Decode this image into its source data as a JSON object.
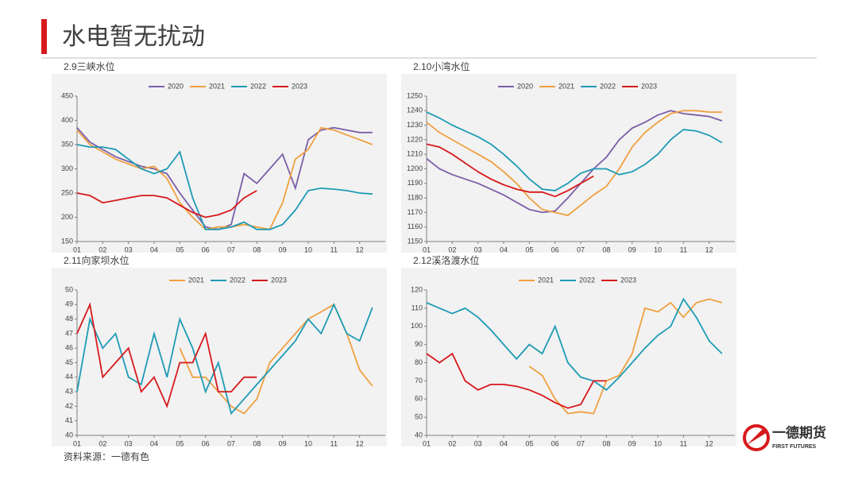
{
  "slide_title": "水电暂无扰动",
  "source": "资料来源：一德有色",
  "logo": {
    "name": "一德期货",
    "subtitle": "FIRST FUTURES"
  },
  "chart_data": [
    {
      "type": "line",
      "title": "2.9三峡水位",
      "x": [
        1,
        1.5,
        2,
        2.5,
        3,
        3.5,
        4,
        4.5,
        5,
        5.5,
        6,
        6.5,
        7,
        7.5,
        8,
        8.5,
        9,
        9.5,
        10,
        10.5,
        11,
        11.5,
        12,
        12.5
      ],
      "xlim": [
        1,
        13
      ],
      "xticks": [
        {
          "value": 1,
          "label": "01"
        },
        {
          "value": 2,
          "label": "02"
        },
        {
          "value": 3,
          "label": "03"
        },
        {
          "value": 4,
          "label": "04"
        },
        {
          "value": 5,
          "label": "05"
        },
        {
          "value": 6,
          "label": "06"
        },
        {
          "value": 7,
          "label": "07"
        },
        {
          "value": 8,
          "label": "08"
        },
        {
          "value": 9,
          "label": "09"
        },
        {
          "value": 10,
          "label": "10"
        },
        {
          "value": 11,
          "label": "11"
        },
        {
          "value": 12,
          "label": "12"
        }
      ],
      "ylim": [
        150,
        450
      ],
      "yticks": [
        150,
        200,
        250,
        300,
        350,
        400,
        450
      ],
      "series": [
        {
          "name": "2020",
          "color": "#7b5ea7",
          "values": [
            385,
            355,
            340,
            325,
            315,
            305,
            300,
            290,
            250,
            215,
            180,
            175,
            185,
            290,
            270,
            300,
            330,
            260,
            360,
            380,
            385,
            380,
            375,
            375
          ]
        },
        {
          "name": "2021",
          "color": "#f0a040",
          "values": [
            380,
            350,
            335,
            320,
            310,
            300,
            305,
            280,
            230,
            200,
            175,
            180,
            180,
            185,
            180,
            175,
            230,
            320,
            340,
            385,
            380,
            370,
            360,
            350
          ]
        },
        {
          "name": "2022",
          "color": "#1e9bb5",
          "values": [
            350,
            345,
            345,
            340,
            320,
            300,
            290,
            300,
            335,
            240,
            175,
            175,
            180,
            190,
            175,
            175,
            185,
            215,
            255,
            260,
            258,
            255,
            250,
            248
          ]
        },
        {
          "name": "2023",
          "color": "#d7191c",
          "values": [
            250,
            245,
            230,
            235,
            240,
            245,
            245,
            240,
            225,
            210,
            200,
            205,
            215,
            240,
            255,
            null,
            null,
            null,
            null,
            null,
            null,
            null,
            null,
            null
          ]
        }
      ]
    },
    {
      "type": "line",
      "title": "2.10小湾水位",
      "x": [
        1,
        1.5,
        2,
        2.5,
        3,
        3.5,
        4,
        4.5,
        5,
        5.5,
        6,
        6.5,
        7,
        7.5,
        8,
        8.5,
        9,
        9.5,
        10,
        10.5,
        11,
        11.5,
        12,
        12.5
      ],
      "xlim": [
        1,
        13
      ],
      "xticks": [
        {
          "value": 1,
          "label": "01"
        },
        {
          "value": 2,
          "label": "02"
        },
        {
          "value": 3,
          "label": "03"
        },
        {
          "value": 4,
          "label": "04"
        },
        {
          "value": 5,
          "label": "05"
        },
        {
          "value": 6,
          "label": "06"
        },
        {
          "value": 7,
          "label": "07"
        },
        {
          "value": 8,
          "label": "08"
        },
        {
          "value": 9,
          "label": "09"
        },
        {
          "value": 10,
          "label": "10"
        },
        {
          "value": 11,
          "label": "11"
        },
        {
          "value": 12,
          "label": "12"
        }
      ],
      "ylim": [
        1150,
        1250
      ],
      "yticks": [
        1150,
        1160,
        1170,
        1180,
        1190,
        1200,
        1210,
        1220,
        1230,
        1240,
        1250
      ],
      "series": [
        {
          "name": "2020",
          "color": "#7b5ea7",
          "values": [
            1207,
            1200,
            1196,
            1193,
            1190,
            1186,
            1182,
            1177,
            1172,
            1170,
            1171,
            1180,
            1190,
            1200,
            1208,
            1220,
            1228,
            1232,
            1237,
            1240,
            1238,
            1237,
            1236,
            1233
          ]
        },
        {
          "name": "2021",
          "color": "#f0a040",
          "values": [
            1232,
            1225,
            1220,
            1215,
            1210,
            1205,
            1198,
            1190,
            1180,
            1172,
            1170,
            1168,
            1175,
            1182,
            1188,
            1200,
            1215,
            1225,
            1232,
            1238,
            1240,
            1240,
            1239,
            1239
          ]
        },
        {
          "name": "2022",
          "color": "#1e9bb5",
          "values": [
            1239,
            1235,
            1230,
            1226,
            1222,
            1217,
            1210,
            1202,
            1193,
            1186,
            1185,
            1190,
            1197,
            1200,
            1200,
            1196,
            1198,
            1203,
            1210,
            1220,
            1227,
            1226,
            1223,
            1218
          ]
        },
        {
          "name": "2023",
          "color": "#d7191c",
          "values": [
            1217,
            1215,
            1210,
            1204,
            1198,
            1193,
            1189,
            1186,
            1184,
            1184,
            1181,
            1185,
            1190,
            1195,
            null,
            null,
            null,
            null,
            null,
            null,
            null,
            null,
            null,
            null
          ]
        }
      ]
    },
    {
      "type": "line",
      "title": "2.11向家坝水位",
      "x": [
        1,
        1.5,
        2,
        2.5,
        3,
        3.5,
        4,
        4.5,
        5,
        5.5,
        6,
        6.5,
        7,
        7.5,
        8,
        8.5,
        9,
        9.5,
        10,
        10.5,
        11,
        11.5,
        12,
        12.5
      ],
      "xlim": [
        1,
        13
      ],
      "xticks": [
        {
          "value": 1,
          "label": "01"
        },
        {
          "value": 2,
          "label": "02"
        },
        {
          "value": 3,
          "label": "03"
        },
        {
          "value": 4,
          "label": "04"
        },
        {
          "value": 5,
          "label": "05"
        },
        {
          "value": 6,
          "label": "06"
        },
        {
          "value": 7,
          "label": "07"
        },
        {
          "value": 8,
          "label": "08"
        },
        {
          "value": 9,
          "label": "09"
        },
        {
          "value": 10,
          "label": "10"
        },
        {
          "value": 11,
          "label": "11"
        },
        {
          "value": 12,
          "label": "12"
        }
      ],
      "ylim": [
        40,
        50
      ],
      "yticks": [
        40,
        41,
        42,
        43,
        44,
        45,
        46,
        47,
        48,
        49,
        50
      ],
      "series": [
        {
          "name": "2021",
          "color": "#f0a040",
          "values": [
            null,
            null,
            null,
            null,
            null,
            null,
            null,
            null,
            46,
            44,
            44,
            43,
            42,
            41.5,
            42.5,
            45,
            46,
            47,
            48,
            48.5,
            49,
            47,
            44.5,
            43.4
          ]
        },
        {
          "name": "2022",
          "color": "#1e9bb5",
          "values": [
            43,
            48,
            46,
            47,
            44,
            43.5,
            47,
            44,
            48,
            46,
            43,
            45,
            41.5,
            42.5,
            43.5,
            44.5,
            45.5,
            46.5,
            48,
            47,
            49,
            47,
            46.5,
            48.8
          ]
        },
        {
          "name": "2023",
          "color": "#d7191c",
          "values": [
            47,
            49,
            44,
            45,
            46,
            43,
            44,
            42,
            45,
            45,
            47,
            43,
            43,
            44,
            44,
            null,
            null,
            null,
            null,
            null,
            null,
            null,
            null,
            null
          ]
        }
      ]
    },
    {
      "type": "line",
      "title": "2.12溪洛渡水位",
      "x": [
        1,
        1.5,
        2,
        2.5,
        3,
        3.5,
        4,
        4.5,
        5,
        5.5,
        6,
        6.5,
        7,
        7.5,
        8,
        8.5,
        9,
        9.5,
        10,
        10.5,
        11,
        11.5,
        12,
        12.5
      ],
      "xlim": [
        1,
        13
      ],
      "xticks": [
        {
          "value": 1,
          "label": "01"
        },
        {
          "value": 2,
          "label": "02"
        },
        {
          "value": 3,
          "label": "03"
        },
        {
          "value": 4,
          "label": "04"
        },
        {
          "value": 5,
          "label": "05"
        },
        {
          "value": 6,
          "label": "06"
        },
        {
          "value": 7,
          "label": "07"
        },
        {
          "value": 8,
          "label": "08"
        },
        {
          "value": 9,
          "label": "09"
        },
        {
          "value": 10,
          "label": "10"
        },
        {
          "value": 11,
          "label": "11"
        },
        {
          "value": 12,
          "label": "12"
        }
      ],
      "ylim": [
        40,
        120
      ],
      "yticks": [
        40,
        50,
        60,
        70,
        80,
        90,
        100,
        110,
        120
      ],
      "series": [
        {
          "name": "2021",
          "color": "#f0a040",
          "values": [
            null,
            null,
            null,
            null,
            null,
            null,
            null,
            null,
            78,
            73,
            60,
            52,
            53,
            52,
            70,
            73,
            85,
            110,
            108,
            113,
            105,
            113,
            115,
            113
          ]
        },
        {
          "name": "2022",
          "color": "#1e9bb5",
          "values": [
            113,
            110,
            107,
            110,
            105,
            98,
            90,
            82,
            90,
            85,
            100,
            80,
            72,
            70,
            65,
            72,
            80,
            88,
            95,
            100,
            115,
            105,
            92,
            85
          ]
        },
        {
          "name": "2023",
          "color": "#d7191c",
          "values": [
            85,
            80,
            85,
            70,
            65,
            68,
            68,
            67,
            65,
            62,
            58,
            55,
            57,
            70,
            70,
            null,
            null,
            null,
            null,
            null,
            null,
            null,
            null,
            null
          ]
        }
      ]
    }
  ]
}
